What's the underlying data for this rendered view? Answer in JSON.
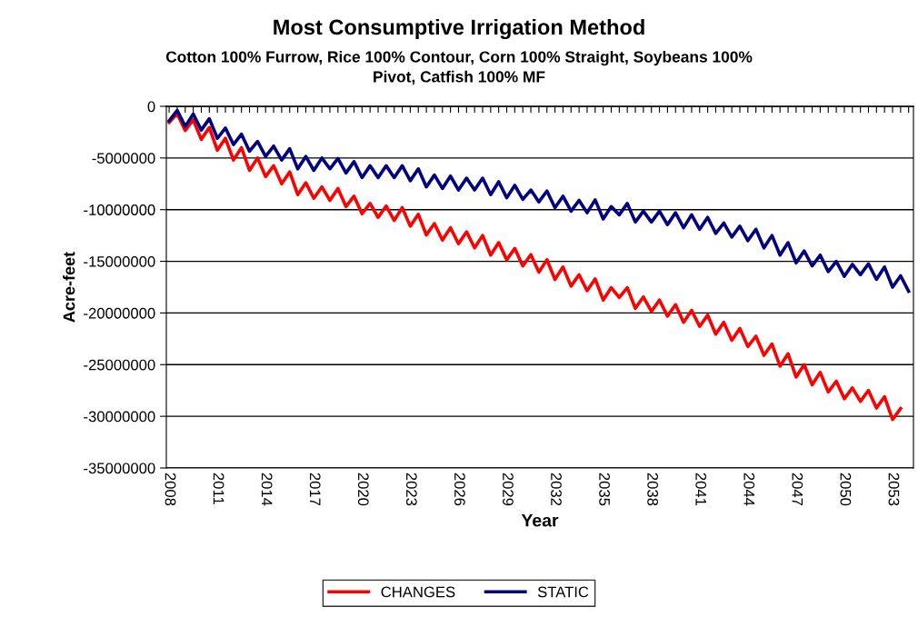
{
  "chart_data": {
    "type": "line",
    "title": "Most Consumptive Irrigation Method",
    "subtitle": "Cotton 100% Furrow, Rice 100% Contour, Corn 100% Straight, Soybeans 100%\nPivot, Catfish 100% MF",
    "xlabel": "Year",
    "ylabel": "Acre-feet",
    "categories": [
      "2008",
      null,
      null,
      null,
      null,
      null,
      "2011",
      null,
      null,
      null,
      null,
      null,
      "2014",
      null,
      null,
      null,
      null,
      null,
      "2017",
      null,
      null,
      null,
      null,
      null,
      "2020",
      null,
      null,
      null,
      null,
      null,
      "2023",
      null,
      null,
      null,
      null,
      null,
      "2026",
      null,
      null,
      null,
      null,
      null,
      "2029",
      null,
      null,
      null,
      null,
      null,
      "2032",
      null,
      null,
      null,
      null,
      null,
      "2035",
      null,
      null,
      null,
      null,
      null,
      "2038",
      null,
      null,
      null,
      null,
      null,
      "2041",
      null,
      null,
      null,
      null,
      null,
      "2044",
      null,
      null,
      null,
      null,
      null,
      "2047",
      null,
      null,
      null,
      null,
      null,
      "2050",
      null,
      null,
      null,
      null,
      null,
      "2053",
      null,
      null
    ],
    "series": [
      {
        "name": "CHANGES",
        "color": "#ff0000",
        "values": [
          -1550000,
          -700000,
          -2350000,
          -1300000,
          -3200000,
          -2050000,
          -4250000,
          -3100000,
          -5200000,
          -4000000,
          -6200000,
          -5000000,
          -6800000,
          -5750000,
          -7500000,
          -6350000,
          -8550000,
          -7400000,
          -8900000,
          -7800000,
          -9100000,
          -7950000,
          -9700000,
          -8700000,
          -10400000,
          -9400000,
          -10750000,
          -9650000,
          -11050000,
          -9800000,
          -11600000,
          -10450000,
          -12450000,
          -11350000,
          -12950000,
          -11750000,
          -13300000,
          -12150000,
          -13700000,
          -12500000,
          -14400000,
          -13200000,
          -14850000,
          -13750000,
          -15450000,
          -14350000,
          -16050000,
          -14850000,
          -16750000,
          -15550000,
          -17400000,
          -16300000,
          -17850000,
          -16700000,
          -18750000,
          -17550000,
          -18500000,
          -17550000,
          -19550000,
          -18450000,
          -19850000,
          -18750000,
          -20300000,
          -19200000,
          -20900000,
          -19750000,
          -21300000,
          -20200000,
          -22050000,
          -20900000,
          -22650000,
          -21500000,
          -23250000,
          -22250000,
          -24100000,
          -23000000,
          -25150000,
          -23950000,
          -26200000,
          -25000000,
          -26950000,
          -25750000,
          -27650000,
          -26600000,
          -28300000,
          -27250000,
          -28550000,
          -27500000,
          -29200000,
          -28100000,
          -30300000,
          -29250000,
          null
        ]
      },
      {
        "name": "STATIC",
        "color": "#000080",
        "values": [
          -1400000,
          -400000,
          -1950000,
          -750000,
          -2300000,
          -1200000,
          -3100000,
          -2100000,
          -3700000,
          -2700000,
          -4350000,
          -3400000,
          -4850000,
          -3850000,
          -5200000,
          -4100000,
          -6050000,
          -4850000,
          -6200000,
          -5000000,
          -6050000,
          -5050000,
          -6450000,
          -5350000,
          -6900000,
          -5750000,
          -6900000,
          -5750000,
          -6900000,
          -5750000,
          -7200000,
          -6050000,
          -7800000,
          -6650000,
          -7950000,
          -6750000,
          -8100000,
          -6950000,
          -8100000,
          -6950000,
          -8550000,
          -7300000,
          -8850000,
          -7650000,
          -9000000,
          -8100000,
          -9250000,
          -8200000,
          -9800000,
          -8700000,
          -10150000,
          -9100000,
          -10300000,
          -9050000,
          -10900000,
          -9700000,
          -10500000,
          -9400000,
          -11200000,
          -10150000,
          -11200000,
          -10150000,
          -11450000,
          -10300000,
          -11750000,
          -10500000,
          -11900000,
          -10750000,
          -12300000,
          -11300000,
          -12650000,
          -11600000,
          -13000000,
          -11900000,
          -13700000,
          -12500000,
          -14400000,
          -13200000,
          -15150000,
          -14000000,
          -15450000,
          -14400000,
          -16000000,
          -15000000,
          -16450000,
          -15300000,
          -16300000,
          -15250000,
          -16750000,
          -15550000,
          -17500000,
          -16400000,
          -17900000
        ]
      }
    ],
    "ylim": [
      -35000000,
      0
    ],
    "yticks": [
      0,
      -5000000,
      -10000000,
      -15000000,
      -20000000,
      -25000000,
      -30000000,
      -35000000
    ],
    "grid": "y",
    "legend": "bottom",
    "marker": "none",
    "line_style": "solid"
  }
}
